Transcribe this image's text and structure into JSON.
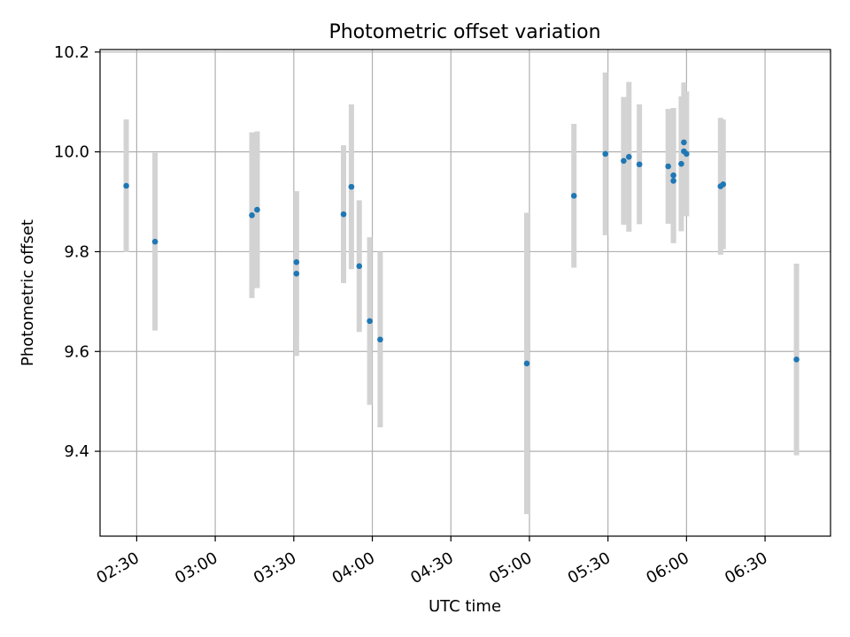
{
  "chart_data": {
    "type": "scatter",
    "title": "Photometric offset variation",
    "xlabel": "UTC time",
    "ylabel": "Photometric offset",
    "x_unit": "UTC time (HH:MM)",
    "xlim": [
      "02:16",
      "06:55"
    ],
    "ylim": [
      9.23,
      10.205
    ],
    "x_ticks": [
      "02:30",
      "03:00",
      "03:30",
      "04:00",
      "04:30",
      "05:00",
      "05:30",
      "06:00",
      "06:30"
    ],
    "y_ticks": [
      9.4,
      9.6,
      9.8,
      10.0,
      10.2
    ],
    "y_tick_labels": [
      "9.4",
      "9.6",
      "9.8",
      "10.0",
      "10.2"
    ],
    "grid": true,
    "colors": {
      "point": "#1f77b4",
      "errorbar": "#d3d3d3",
      "grid": "#b0b0b0"
    },
    "points": [
      {
        "x": "02:26",
        "y": 9.932,
        "err": 0.133
      },
      {
        "x": "02:37",
        "y": 9.82,
        "err": 0.178
      },
      {
        "x": "03:14",
        "y": 9.873,
        "err": 0.166
      },
      {
        "x": "03:16",
        "y": 9.884,
        "err": 0.157
      },
      {
        "x": "03:31",
        "y": 9.779,
        "err": 0.142
      },
      {
        "x": "03:31",
        "y": 9.756,
        "err": 0.165
      },
      {
        "x": "03:49",
        "y": 9.875,
        "err": 0.138
      },
      {
        "x": "03:52",
        "y": 9.93,
        "err": 0.165
      },
      {
        "x": "03:55",
        "y": 9.771,
        "err": 0.132
      },
      {
        "x": "03:59",
        "y": 9.661,
        "err": 0.168
      },
      {
        "x": "04:03",
        "y": 9.624,
        "err": 0.176
      },
      {
        "x": "04:59",
        "y": 9.576,
        "err": 0.302
      },
      {
        "x": "05:17",
        "y": 9.912,
        "err": 0.144
      },
      {
        "x": "05:29",
        "y": 9.996,
        "err": 0.163
      },
      {
        "x": "05:36",
        "y": 9.982,
        "err": 0.128
      },
      {
        "x": "05:38",
        "y": 9.99,
        "err": 0.15
      },
      {
        "x": "05:42",
        "y": 9.975,
        "err": 0.12
      },
      {
        "x": "05:53",
        "y": 9.971,
        "err": 0.115
      },
      {
        "x": "05:55",
        "y": 9.942,
        "err": 0.125
      },
      {
        "x": "05:55",
        "y": 9.953,
        "err": 0.135
      },
      {
        "x": "05:58",
        "y": 9.976,
        "err": 0.135
      },
      {
        "x": "05:59",
        "y": 10.019,
        "err": 0.12
      },
      {
        "x": "05:59",
        "y": 10.001,
        "err": 0.115
      },
      {
        "x": "06:00",
        "y": 9.996,
        "err": 0.125
      },
      {
        "x": "06:13",
        "y": 9.931,
        "err": 0.137
      },
      {
        "x": "06:14",
        "y": 9.935,
        "err": 0.13
      },
      {
        "x": "06:42",
        "y": 9.584,
        "err": 0.192
      }
    ]
  }
}
